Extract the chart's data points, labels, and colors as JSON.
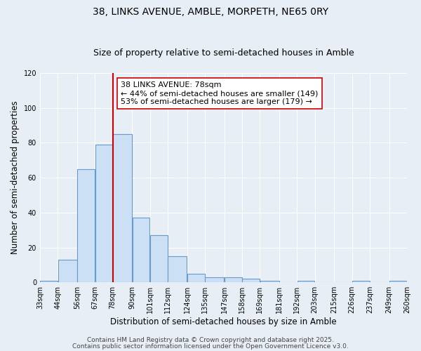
{
  "title": "38, LINKS AVENUE, AMBLE, MORPETH, NE65 0RY",
  "subtitle": "Size of property relative to semi-detached houses in Amble",
  "xlabel": "Distribution of semi-detached houses by size in Amble",
  "ylabel": "Number of semi-detached properties",
  "bin_edges": [
    33,
    44,
    56,
    67,
    78,
    90,
    101,
    112,
    124,
    135,
    147,
    158,
    169,
    181,
    192,
    203,
    215,
    226,
    237,
    249,
    260
  ],
  "bar_heights": [
    1,
    13,
    65,
    79,
    85,
    37,
    27,
    15,
    5,
    3,
    3,
    2,
    1,
    0,
    1,
    0,
    0,
    1,
    0,
    1
  ],
  "bar_face_color": "#cce0f5",
  "bar_edge_color": "#6699cc",
  "property_value": 78,
  "vline_color": "#cc0000",
  "annotation_text": "38 LINKS AVENUE: 78sqm\n← 44% of semi-detached houses are smaller (149)\n53% of semi-detached houses are larger (179) →",
  "annotation_box_color": "#ffffff",
  "annotation_box_edge": "#cc0000",
  "ylim": [
    0,
    120
  ],
  "yticks": [
    0,
    20,
    40,
    60,
    80,
    100,
    120
  ],
  "tick_labels": [
    "33sqm",
    "44sqm",
    "56sqm",
    "67sqm",
    "78sqm",
    "90sqm",
    "101sqm",
    "112sqm",
    "124sqm",
    "135sqm",
    "147sqm",
    "158sqm",
    "169sqm",
    "181sqm",
    "192sqm",
    "203sqm",
    "215sqm",
    "226sqm",
    "237sqm",
    "249sqm",
    "260sqm"
  ],
  "footer1": "Contains HM Land Registry data © Crown copyright and database right 2025.",
  "footer2": "Contains public sector information licensed under the Open Government Licence v3.0.",
  "background_color": "#e8eef5",
  "grid_color": "#ffffff",
  "title_fontsize": 10,
  "subtitle_fontsize": 9,
  "axis_label_fontsize": 8.5,
  "tick_fontsize": 7,
  "annotation_fontsize": 8,
  "footer_fontsize": 6.5
}
